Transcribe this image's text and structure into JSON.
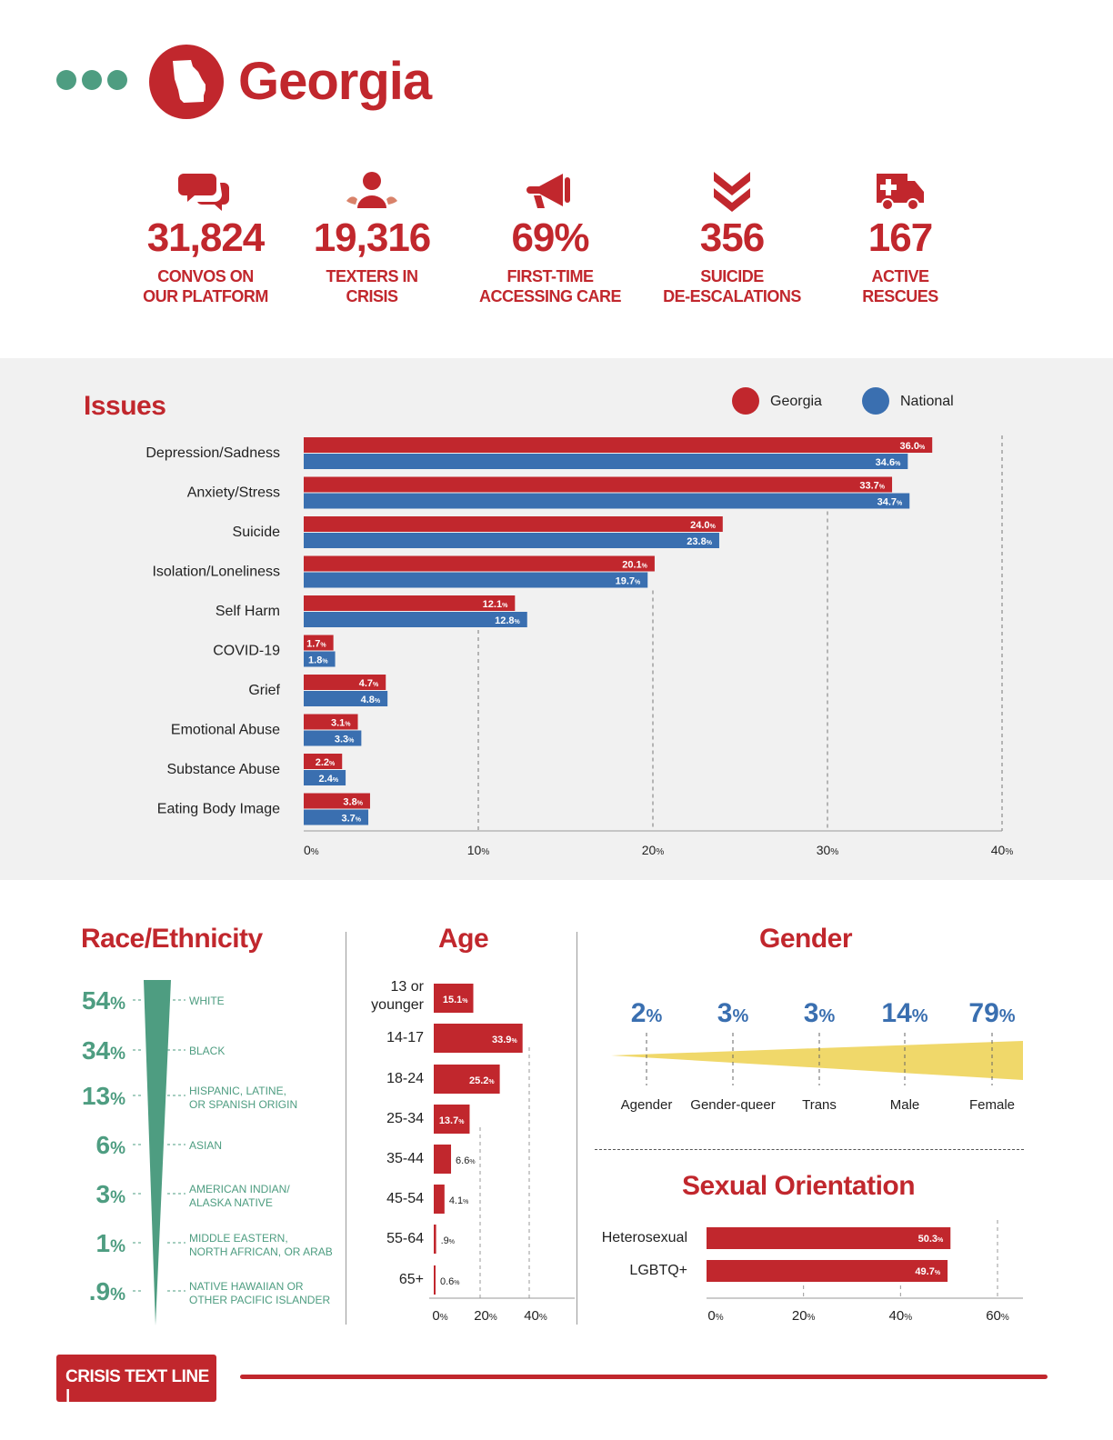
{
  "header": {
    "state": "Georgia"
  },
  "stats": [
    {
      "value": "31,824",
      "label1": "CONVOS ON",
      "label2": "OUR PLATFORM",
      "icon": "chat-bubbles-icon"
    },
    {
      "value": "19,316",
      "label1": "TEXTERS IN",
      "label2": "CRISIS",
      "icon": "person-icon"
    },
    {
      "value": "69%",
      "label1": "FIRST-TIME",
      "label2": "ACCESSING CARE",
      "icon": "megaphone-icon"
    },
    {
      "value": "356",
      "label1": "SUICIDE",
      "label2": "DE-ESCALATIONS",
      "icon": "double-chevron-down-icon"
    },
    {
      "value": "167",
      "label1": "ACTIVE",
      "label2": "RESCUES",
      "icon": "ambulance-icon"
    }
  ],
  "colors": {
    "red": "#c1272d",
    "blue": "#3a6fb0",
    "teal": "#4e9d81",
    "yellow": "#f0d86a"
  },
  "chart_data": [
    {
      "type": "bar",
      "title": "Issues",
      "orientation": "horizontal",
      "categories": [
        "Depression/Sadness",
        "Anxiety/Stress",
        "Suicide",
        "Isolation/Loneliness",
        "Self Harm",
        "COVID-19",
        "Grief",
        "Emotional Abuse",
        "Substance Abuse",
        "Eating Body Image"
      ],
      "series": [
        {
          "name": "Georgia",
          "color": "#c1272d",
          "values": [
            36.0,
            33.7,
            24.0,
            20.1,
            12.1,
            1.7,
            4.7,
            3.1,
            2.2,
            3.8
          ],
          "labels": [
            "36.0",
            "33.7",
            "24.0",
            "20.1",
            "12.1",
            "1.7",
            "4.7",
            "3.1",
            "2.2",
            "3.8"
          ]
        },
        {
          "name": "National",
          "color": "#3a6fb0",
          "values": [
            34.6,
            34.7,
            23.8,
            19.7,
            12.8,
            1.8,
            4.8,
            3.3,
            2.4,
            3.7
          ],
          "labels": [
            "34.6",
            "34.7",
            "23.8",
            "19.7",
            "12.8",
            "1.8",
            "4.8",
            "3.3",
            "2.4",
            "3.7"
          ]
        }
      ],
      "xlim": [
        0,
        40
      ],
      "ticks": [
        "0",
        "10",
        "20",
        "30",
        "40"
      ],
      "legend": "top-right"
    },
    {
      "type": "funnel",
      "title": "Race/Ethnicity",
      "items": [
        {
          "value": "54",
          "label1": "WHITE",
          "label2": ""
        },
        {
          "value": "34",
          "label1": "BLACK",
          "label2": ""
        },
        {
          "value": "13",
          "label1": "HISPANIC, LATINE,",
          "label2": "OR SPANISH ORIGIN"
        },
        {
          "value": "6",
          "label1": "ASIAN",
          "label2": ""
        },
        {
          "value": "3",
          "label1": "AMERICAN INDIAN/",
          "label2": "ALASKA NATIVE"
        },
        {
          "value": "1",
          "label1": "MIDDLE EASTERN,",
          "label2": "NORTH AFRICAN, OR ARAB"
        },
        {
          "value": ".9",
          "label1": "NATIVE HAWAIIAN OR",
          "label2": "OTHER PACIFIC ISLANDER"
        }
      ]
    },
    {
      "type": "bar",
      "title": "Age",
      "orientation": "horizontal",
      "categories": [
        [
          "13 or",
          "younger"
        ],
        [
          "14-17"
        ],
        [
          "18-24"
        ],
        [
          "25-34"
        ],
        [
          "35-44"
        ],
        [
          "45-54"
        ],
        [
          "55-64"
        ],
        [
          "65+"
        ]
      ],
      "values": [
        15.1,
        33.9,
        25.2,
        13.7,
        6.6,
        4.1,
        0.9,
        0.6
      ],
      "labels": [
        "15.1",
        "33.9",
        "25.2",
        "13.7",
        "6.6",
        "4.1",
        ".9",
        "0.6"
      ],
      "xlim": [
        0,
        40
      ],
      "ticks": [
        "0",
        "20",
        "40"
      ]
    },
    {
      "type": "wedge",
      "title": "Gender",
      "items": [
        {
          "value": "2",
          "label": "Agender"
        },
        {
          "value": "3",
          "label": "Gender-queer"
        },
        {
          "value": "3",
          "label": "Trans"
        },
        {
          "value": "14",
          "label": "Male"
        },
        {
          "value": "79",
          "label": "Female"
        }
      ]
    },
    {
      "type": "bar",
      "title": "Sexual Orientation",
      "orientation": "horizontal",
      "categories": [
        "Heterosexual",
        "LGBTQ+"
      ],
      "values": [
        50.3,
        49.7
      ],
      "labels": [
        "50.3",
        "49.7"
      ],
      "xlim": [
        0,
        60
      ],
      "ticks": [
        "0",
        "20",
        "40",
        "60"
      ]
    }
  ],
  "footer": {
    "logo": "CRISIS TEXT LINE |"
  }
}
